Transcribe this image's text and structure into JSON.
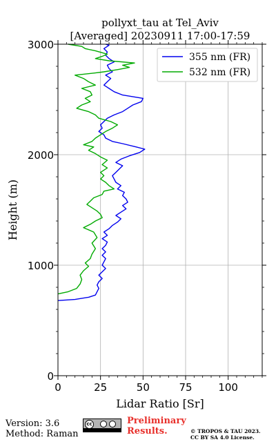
{
  "chart_data": {
    "type": "line",
    "title": "pollyxt_tau at Tel_Aviv",
    "subtitle": "[Averaged] 20230911 17:00-17:59",
    "xlabel": "Lidar Ratio [Sr]",
    "ylabel": "Height (m)",
    "xlim": [
      0,
      120
    ],
    "ylim": [
      0,
      3000
    ],
    "x_ticks": [
      0,
      25,
      50,
      75,
      100
    ],
    "y_ticks": [
      0,
      1000,
      2000,
      3000
    ],
    "grid": true,
    "legend_position": "top-right",
    "series": [
      {
        "name": "355 nm (FR)",
        "color": "#0000ee",
        "points": [
          [
            0,
            680
          ],
          [
            10,
            690
          ],
          [
            18,
            710
          ],
          [
            22,
            730
          ],
          [
            23,
            760
          ],
          [
            24,
            790
          ],
          [
            23,
            820
          ],
          [
            24,
            850
          ],
          [
            26,
            880
          ],
          [
            24,
            910
          ],
          [
            26,
            940
          ],
          [
            28,
            970
          ],
          [
            26,
            1000
          ],
          [
            27,
            1030
          ],
          [
            28,
            1060
          ],
          [
            26,
            1090
          ],
          [
            28,
            1120
          ],
          [
            26,
            1150
          ],
          [
            28,
            1180
          ],
          [
            29,
            1210
          ],
          [
            26,
            1240
          ],
          [
            29,
            1270
          ],
          [
            27,
            1300
          ],
          [
            30,
            1330
          ],
          [
            32,
            1360
          ],
          [
            35,
            1390
          ],
          [
            37,
            1420
          ],
          [
            34,
            1450
          ],
          [
            37,
            1480
          ],
          [
            40,
            1510
          ],
          [
            38,
            1540
          ],
          [
            41,
            1570
          ],
          [
            40,
            1600
          ],
          [
            38,
            1630
          ],
          [
            39,
            1660
          ],
          [
            35,
            1690
          ],
          [
            37,
            1720
          ],
          [
            34,
            1750
          ],
          [
            33,
            1780
          ],
          [
            32,
            1810
          ],
          [
            34,
            1840
          ],
          [
            36,
            1870
          ],
          [
            38,
            1900
          ],
          [
            34,
            1930
          ],
          [
            37,
            1960
          ],
          [
            42,
            1990
          ],
          [
            48,
            2020
          ],
          [
            51,
            2050
          ],
          [
            46,
            2070
          ],
          [
            38,
            2100
          ],
          [
            32,
            2120
          ],
          [
            28,
            2150
          ],
          [
            27,
            2180
          ],
          [
            24,
            2210
          ],
          [
            26,
            2240
          ],
          [
            25,
            2270
          ],
          [
            27,
            2300
          ],
          [
            29,
            2330
          ],
          [
            33,
            2360
          ],
          [
            38,
            2390
          ],
          [
            41,
            2420
          ],
          [
            44,
            2450
          ],
          [
            49,
            2480
          ],
          [
            50,
            2510
          ],
          [
            38,
            2540
          ],
          [
            33,
            2570
          ],
          [
            30,
            2600
          ],
          [
            27,
            2630
          ],
          [
            29,
            2660
          ],
          [
            31,
            2690
          ],
          [
            28,
            2720
          ],
          [
            32,
            2750
          ],
          [
            30,
            2780
          ],
          [
            29,
            2810
          ],
          [
            33,
            2840
          ],
          [
            30,
            2870
          ],
          [
            28,
            2900
          ],
          [
            29,
            2930
          ],
          [
            27,
            2960
          ],
          [
            30,
            2990
          ],
          [
            28,
            3000
          ]
        ]
      },
      {
        "name": "532 nm (FR)",
        "color": "#00aa00",
        "points": [
          [
            0,
            740
          ],
          [
            6,
            760
          ],
          [
            11,
            790
          ],
          [
            13,
            830
          ],
          [
            14,
            870
          ],
          [
            13,
            910
          ],
          [
            15,
            950
          ],
          [
            18,
            990
          ],
          [
            16,
            1020
          ],
          [
            19,
            1060
          ],
          [
            20,
            1100
          ],
          [
            22,
            1150
          ],
          [
            20,
            1200
          ],
          [
            23,
            1250
          ],
          [
            21,
            1300
          ],
          [
            15,
            1340
          ],
          [
            19,
            1370
          ],
          [
            22,
            1400
          ],
          [
            26,
            1430
          ],
          [
            25,
            1460
          ],
          [
            23,
            1490
          ],
          [
            20,
            1520
          ],
          [
            17,
            1550
          ],
          [
            19,
            1580
          ],
          [
            21,
            1610
          ],
          [
            26,
            1640
          ],
          [
            27,
            1670
          ],
          [
            33,
            1690
          ],
          [
            30,
            1720
          ],
          [
            28,
            1750
          ],
          [
            25,
            1780
          ],
          [
            27,
            1810
          ],
          [
            25,
            1840
          ],
          [
            29,
            1880
          ],
          [
            26,
            1910
          ],
          [
            29,
            1950
          ],
          [
            25,
            1980
          ],
          [
            22,
            2010
          ],
          [
            18,
            2040
          ],
          [
            21,
            2070
          ],
          [
            15,
            2090
          ],
          [
            20,
            2120
          ],
          [
            22,
            2150
          ],
          [
            25,
            2180
          ],
          [
            28,
            2210
          ],
          [
            32,
            2240
          ],
          [
            35,
            2270
          ],
          [
            31,
            2300
          ],
          [
            24,
            2330
          ],
          [
            22,
            2360
          ],
          [
            18,
            2390
          ],
          [
            11,
            2420
          ],
          [
            14,
            2450
          ],
          [
            19,
            2480
          ],
          [
            16,
            2510
          ],
          [
            20,
            2540
          ],
          [
            19,
            2570
          ],
          [
            14,
            2600
          ],
          [
            22,
            2630
          ],
          [
            18,
            2660
          ],
          [
            15,
            2690
          ],
          [
            10,
            2720
          ],
          [
            22,
            2740
          ],
          [
            27,
            2750
          ],
          [
            35,
            2770
          ],
          [
            42,
            2790
          ],
          [
            38,
            2810
          ],
          [
            45,
            2830
          ],
          [
            30,
            2850
          ],
          [
            22,
            2870
          ],
          [
            26,
            2890
          ],
          [
            29,
            2910
          ],
          [
            22,
            2940
          ],
          [
            16,
            2960
          ],
          [
            14,
            2980
          ],
          [
            6,
            3000
          ]
        ]
      }
    ]
  },
  "footer": {
    "version": "Version: 3.6",
    "method": "Method: Raman",
    "cc_label": "cc",
    "cc_sub": "BY SA",
    "preliminary_line1": "Preliminary",
    "preliminary_line2": "Results.",
    "license_line1": "© TROPOS & TAU 2023.",
    "license_line2": "CC BY SA 4.0 License."
  }
}
